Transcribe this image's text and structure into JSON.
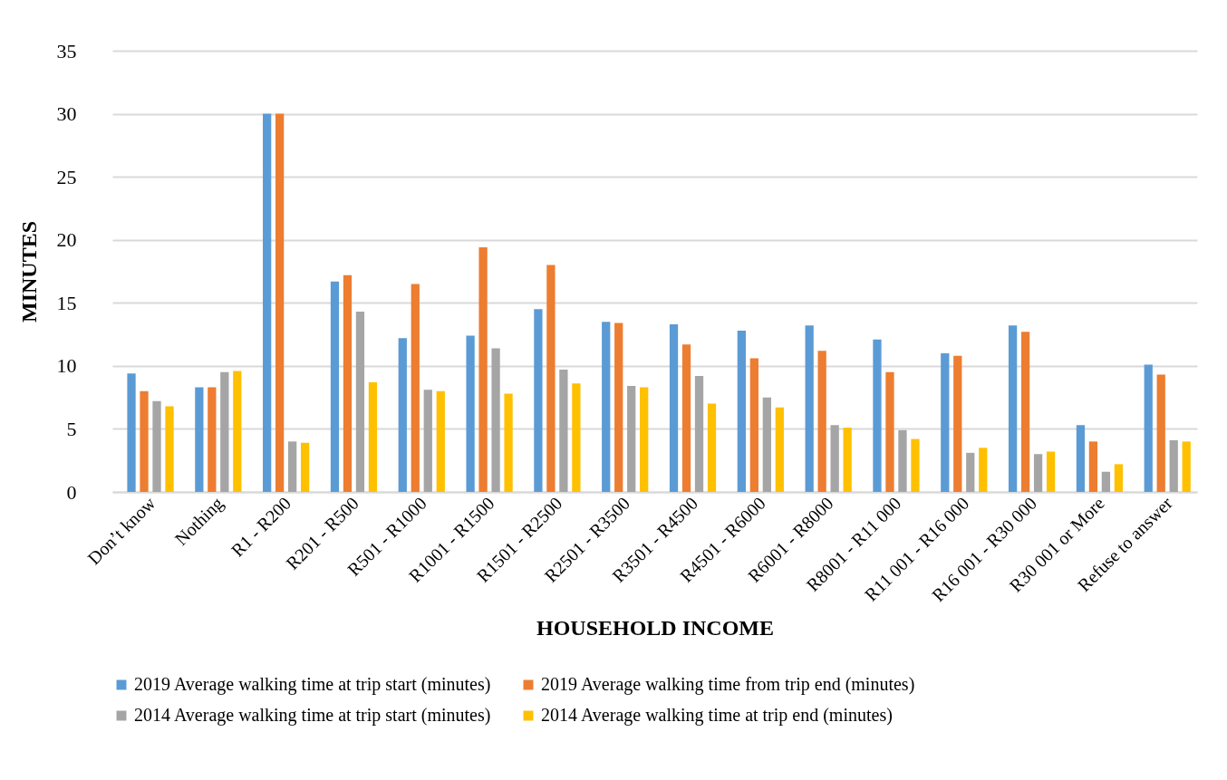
{
  "chart_data": {
    "type": "bar",
    "xlabel": "HOUSEHOLD INCOME",
    "ylabel": "MINUTES",
    "categories": [
      "Don’t know",
      "Nothing",
      "R1 - R200",
      "R201 - R500",
      "R501 - R1000",
      "R1001 - R1500",
      "R1501 - R2500",
      "R2501 - R3500",
      "R3501 - R4500",
      "R4501 - R6000",
      "R6001 - R8000",
      "R8001 - R11 000",
      "R11 001 - R16 000",
      "R16 001 - R30 000",
      "R30 001 or More",
      "Refuse to answer"
    ],
    "series": [
      {
        "name": "2019 Average walking time at trip start (minutes)",
        "color": "#5b9bd5",
        "values": [
          9.4,
          8.3,
          30,
          16.7,
          12.2,
          12.4,
          14.5,
          13.5,
          13.3,
          12.8,
          13.2,
          12.1,
          11.0,
          13.2,
          5.3,
          10.1
        ]
      },
      {
        "name": "2019 Average walking time from trip end (minutes)",
        "color": "#ed7d31",
        "values": [
          8.0,
          8.3,
          30,
          17.2,
          16.5,
          19.4,
          18.0,
          13.4,
          11.7,
          10.6,
          11.2,
          9.5,
          10.8,
          12.7,
          4.0,
          9.3
        ]
      },
      {
        "name": "2014 Average walking time at trip start (minutes)",
        "color": "#a5a5a5",
        "values": [
          7.2,
          9.5,
          4.0,
          14.3,
          8.1,
          11.4,
          9.7,
          8.4,
          9.2,
          7.5,
          5.3,
          4.9,
          3.1,
          3.0,
          1.6,
          4.1
        ]
      },
      {
        "name": "2014 Average walking time at trip end (minutes)",
        "color": "#ffc000",
        "values": [
          6.8,
          9.6,
          3.9,
          8.7,
          8.0,
          7.8,
          8.6,
          8.3,
          7.0,
          6.7,
          5.1,
          4.2,
          3.5,
          3.2,
          2.2,
          4.0
        ]
      }
    ],
    "ylim": [
      0,
      35
    ],
    "yticks": [
      0,
      5,
      10,
      15,
      20,
      25,
      30,
      35
    ],
    "grid": "y",
    "legend": "bottom"
  }
}
